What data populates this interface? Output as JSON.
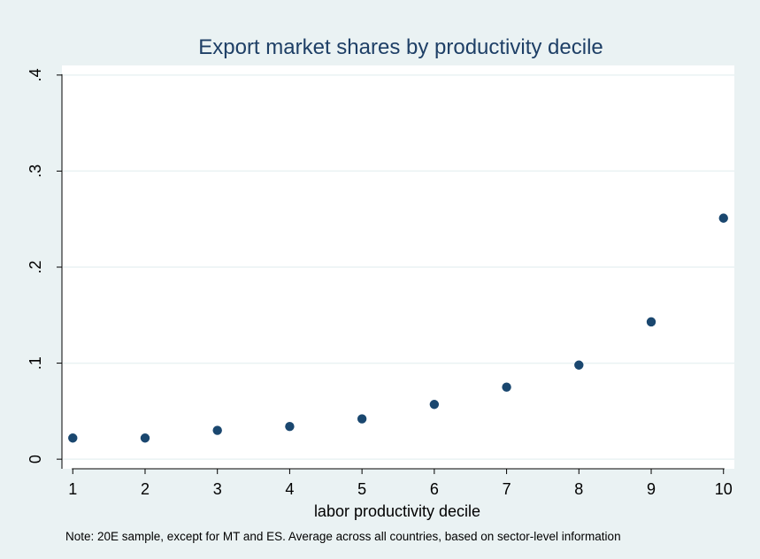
{
  "chart_data": {
    "type": "scatter",
    "title": "Export market shares by productivity decile",
    "xlabel": "labor productivity decile",
    "ylabel": "",
    "note": "Note: 20E sample, except for MT and ES. Average across all countries, based on sector-level information",
    "x_ticks": [
      "1",
      "2",
      "3",
      "4",
      "5",
      "6",
      "7",
      "8",
      "9",
      "10"
    ],
    "y_ticks": [
      {
        "value": 0,
        "label": "0"
      },
      {
        "value": 0.1,
        "label": ".1"
      },
      {
        "value": 0.2,
        "label": ".2"
      },
      {
        "value": 0.3,
        "label": ".3"
      },
      {
        "value": 0.4,
        "label": ".4"
      }
    ],
    "xlim": [
      0.85,
      10.15
    ],
    "ylim": [
      -0.01,
      0.41
    ],
    "grid": true,
    "x": [
      1,
      2,
      3,
      4,
      5,
      6,
      7,
      8,
      9,
      10
    ],
    "y": [
      0.022,
      0.022,
      0.03,
      0.034,
      0.042,
      0.057,
      0.075,
      0.098,
      0.143,
      0.251
    ]
  },
  "colors": {
    "background": "#eaf2f3",
    "plot_area": "#ffffff",
    "marker": "#1a476f",
    "gridline": "#eaf2f3",
    "axis": "#000000",
    "title": "#1e3f66",
    "text": "#000000"
  }
}
